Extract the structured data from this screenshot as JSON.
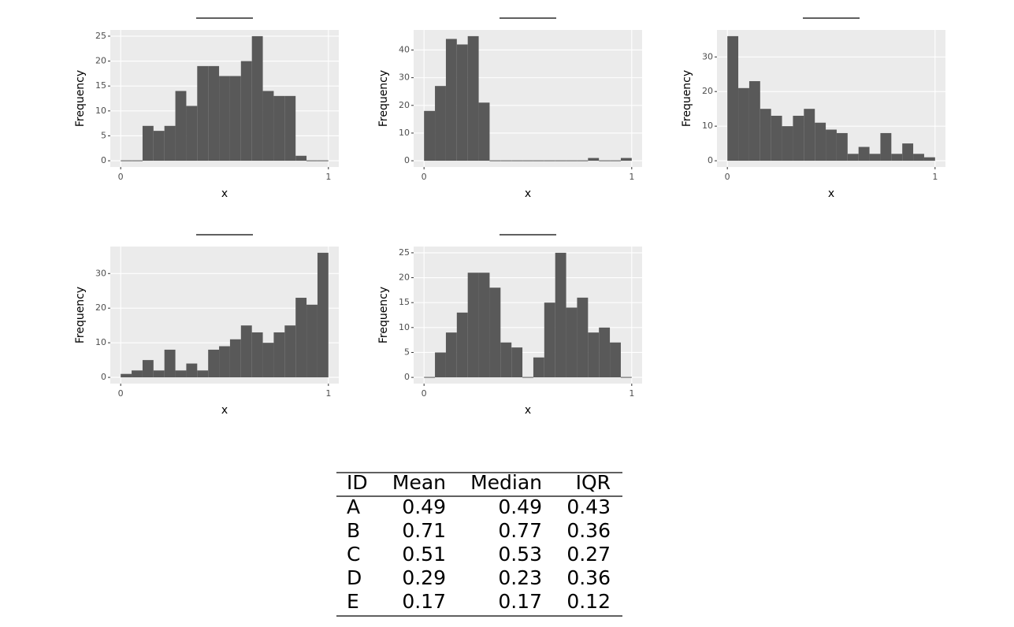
{
  "chart_data": [
    {
      "type": "histogram",
      "bins": [
        0,
        0.0526,
        0.1053,
        0.1579,
        0.2105,
        0.2632,
        0.3158,
        0.3684,
        0.4211,
        0.4737,
        0.5263,
        0.5789,
        0.6316,
        0.6842,
        0.7368,
        0.7895,
        0.8421,
        0.8947,
        0.9474,
        1
      ],
      "values": [
        0,
        0,
        7,
        6,
        7,
        14,
        11,
        19,
        19,
        17,
        17,
        20,
        25,
        14,
        13,
        13,
        1,
        0,
        0
      ],
      "color": "#595959",
      "xlim": [
        -0.05,
        1.05
      ],
      "xticks": [
        0,
        1
      ],
      "ylim": [
        -1.25,
        26.25
      ],
      "yticks": [
        0,
        5,
        10,
        15,
        20,
        25
      ],
      "xlabel": "x",
      "ylabel": "Frequency",
      "grid": true
    },
    {
      "type": "histogram",
      "bins": [
        0,
        0.0526,
        0.1053,
        0.1579,
        0.2105,
        0.2632,
        0.3158,
        0.3684,
        0.4211,
        0.4737,
        0.5263,
        0.5789,
        0.6316,
        0.6842,
        0.7368,
        0.7895,
        0.8421,
        0.8947,
        0.9474,
        1
      ],
      "values": [
        18,
        27,
        44,
        42,
        45,
        21,
        0,
        0,
        0,
        0,
        0,
        0,
        0,
        0,
        0,
        1,
        0,
        0,
        1
      ],
      "color": "#595959",
      "xlim": [
        -0.05,
        1.05
      ],
      "xticks": [
        0,
        1
      ],
      "ylim": [
        -2.25,
        47.25
      ],
      "yticks": [
        0,
        10,
        20,
        30,
        40
      ],
      "xlabel": "x",
      "ylabel": "Frequency",
      "grid": true
    },
    {
      "type": "histogram",
      "bins": [
        0,
        0.0526,
        0.1053,
        0.1579,
        0.2105,
        0.2632,
        0.3158,
        0.3684,
        0.4211,
        0.4737,
        0.5263,
        0.5789,
        0.6316,
        0.6842,
        0.7368,
        0.7895,
        0.8421,
        0.8947,
        0.9474,
        1
      ],
      "values": [
        36,
        21,
        23,
        15,
        13,
        10,
        13,
        15,
        11,
        9,
        8,
        2,
        4,
        2,
        8,
        2,
        5,
        2,
        1
      ],
      "color": "#595959",
      "xlim": [
        -0.05,
        1.05
      ],
      "xticks": [
        0,
        1
      ],
      "ylim": [
        -1.8,
        37.8
      ],
      "yticks": [
        0,
        10,
        20,
        30
      ],
      "xlabel": "x",
      "ylabel": "Frequency",
      "grid": true
    },
    {
      "type": "histogram",
      "bins": [
        0,
        0.0526,
        0.1053,
        0.1579,
        0.2105,
        0.2632,
        0.3158,
        0.3684,
        0.4211,
        0.4737,
        0.5263,
        0.5789,
        0.6316,
        0.6842,
        0.7368,
        0.7895,
        0.8421,
        0.8947,
        0.9474,
        1
      ],
      "values": [
        1,
        2,
        5,
        2,
        8,
        2,
        4,
        2,
        8,
        9,
        11,
        15,
        13,
        10,
        13,
        15,
        23,
        21,
        36
      ],
      "color": "#595959",
      "xlim": [
        -0.05,
        1.05
      ],
      "xticks": [
        0,
        1
      ],
      "ylim": [
        -1.8,
        37.8
      ],
      "yticks": [
        0,
        10,
        20,
        30
      ],
      "xlabel": "x",
      "ylabel": "Frequency",
      "grid": true
    },
    {
      "type": "histogram",
      "bins": [
        0,
        0.0526,
        0.1053,
        0.1579,
        0.2105,
        0.2632,
        0.3158,
        0.3684,
        0.4211,
        0.4737,
        0.5263,
        0.5789,
        0.6316,
        0.6842,
        0.7368,
        0.7895,
        0.8421,
        0.8947,
        0.9474,
        1
      ],
      "values": [
        0,
        5,
        9,
        13,
        21,
        21,
        18,
        7,
        6,
        0,
        4,
        15,
        25,
        14,
        16,
        9,
        10,
        7,
        0
      ],
      "color": "#595959",
      "xlim": [
        -0.05,
        1.05
      ],
      "xticks": [
        0,
        1
      ],
      "ylim": [
        -1.25,
        26.25
      ],
      "yticks": [
        0,
        5,
        10,
        15,
        20,
        25
      ],
      "xlabel": "x",
      "ylabel": "Frequency",
      "grid": true
    }
  ],
  "table": {
    "header": [
      "ID",
      "Mean",
      "Median",
      "IQR"
    ],
    "rows": [
      [
        "A",
        "0.49",
        "0.49",
        "0.43"
      ],
      [
        "B",
        "0.71",
        "0.77",
        "0.36"
      ],
      [
        "C",
        "0.51",
        "0.53",
        "0.27"
      ],
      [
        "D",
        "0.29",
        "0.23",
        "0.36"
      ],
      [
        "E",
        "0.17",
        "0.17",
        "0.12"
      ]
    ]
  }
}
